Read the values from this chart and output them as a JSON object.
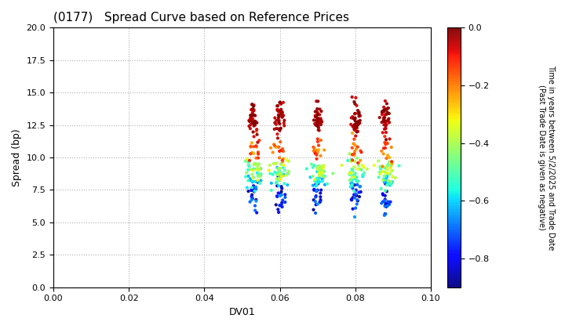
{
  "title": "(0177)   Spread Curve based on Reference Prices",
  "xlabel": "DV01",
  "ylabel": "Spread (bp)",
  "xlim": [
    0.0,
    0.1
  ],
  "ylim": [
    0.0,
    20.0
  ],
  "xticks": [
    0.0,
    0.02,
    0.04,
    0.06,
    0.08,
    0.1
  ],
  "yticks": [
    0.0,
    2.5,
    5.0,
    7.5,
    10.0,
    12.5,
    15.0,
    17.5,
    20.0
  ],
  "colorbar_label": "Time in years between 5/2/2025 and Trade Date\n(Past Trade Date is given as negative)",
  "colorbar_vmin": -0.9,
  "colorbar_vmax": 0.0,
  "colorbar_ticks": [
    0.0,
    -0.2,
    -0.4,
    -0.6,
    -0.8
  ],
  "background_color": "#ffffff",
  "grid_color": "#b0b0b0",
  "cluster_centers": [
    0.053,
    0.06,
    0.07,
    0.08,
    0.088
  ],
  "cluster_dv01_std": 0.0015,
  "n_per_cluster": 130
}
